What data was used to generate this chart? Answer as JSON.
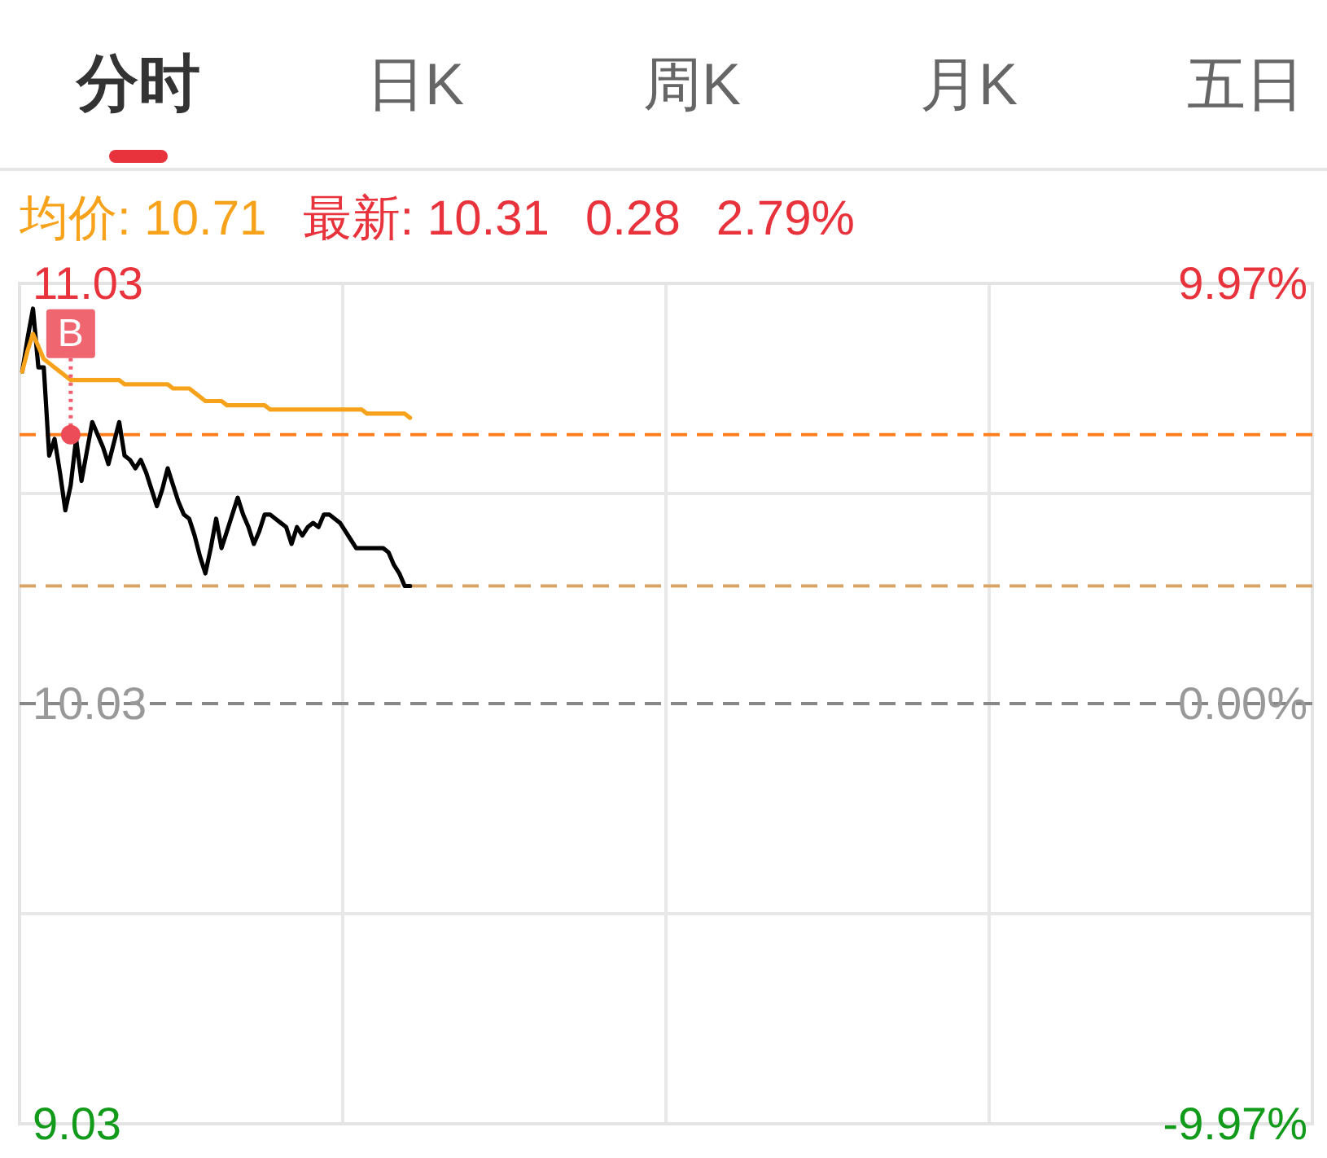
{
  "chart_data": {
    "type": "line",
    "annotations": [
      "分时",
      "日K",
      "周K",
      "月K",
      "五日",
      "均价: 10.71",
      "最新: 10.31",
      "0.28",
      "2.79%"
    ],
    "categories": [
      null,
      null,
      null,
      null,
      null,
      null,
      null,
      null,
      null,
      null,
      null,
      null,
      null,
      null,
      null,
      null,
      null,
      null,
      null,
      null,
      null,
      null,
      null,
      null,
      null,
      null,
      null,
      null,
      null,
      null,
      null,
      null,
      null,
      null,
      null,
      null,
      null,
      null,
      null,
      null,
      null,
      null,
      null,
      null,
      null,
      null,
      null,
      null,
      null,
      null,
      null,
      null,
      null,
      null,
      null,
      null,
      null,
      null,
      null,
      null,
      null,
      null,
      null,
      null,
      null,
      null,
      null,
      null,
      null,
      null,
      null,
      null,
      null,
      null,
      null,
      null,
      null,
      null,
      null,
      null,
      null,
      null,
      null,
      null,
      null,
      null,
      null,
      null,
      null,
      null,
      null,
      null,
      null,
      null,
      null,
      null,
      null,
      null,
      null,
      null,
      null,
      null,
      null,
      null,
      null,
      null,
      null,
      null,
      null,
      null,
      null,
      null,
      null,
      null,
      null,
      null,
      null,
      null,
      null,
      null,
      null,
      null,
      null,
      null,
      null,
      null,
      null,
      null,
      null,
      null,
      null,
      null,
      null,
      null,
      null,
      null,
      null,
      null,
      null,
      null,
      null,
      null,
      null,
      null,
      null,
      null,
      null,
      null,
      null,
      null,
      null,
      null,
      null,
      null,
      null,
      null,
      null,
      null,
      null,
      null,
      null,
      null,
      null,
      null,
      null,
      null,
      null,
      null,
      null,
      null,
      null,
      null,
      null,
      null,
      null,
      null,
      null,
      null,
      null,
      null,
      null,
      null,
      null,
      null,
      null,
      null,
      null,
      null,
      null,
      null,
      null,
      null,
      null,
      null,
      null,
      null,
      null,
      null,
      null,
      null,
      null,
      null,
      null,
      null,
      null,
      null,
      null,
      null,
      null,
      null,
      null,
      null,
      null,
      null,
      null,
      null,
      null,
      null,
      null,
      null,
      null,
      null,
      null,
      null,
      null,
      null,
      null,
      null,
      null,
      null,
      null,
      null,
      null,
      null,
      null,
      null,
      null,
      null,
      null,
      null
    ],
    "series": [
      {
        "color": "#000000",
        "values": [
          10.82,
          10.9,
          10.97,
          10.83,
          10.83,
          10.62,
          10.66,
          10.58,
          10.49,
          10.55,
          10.66,
          10.56,
          10.63,
          10.7,
          10.67,
          10.64,
          10.6,
          10.65,
          10.7,
          10.62,
          10.61,
          10.59,
          10.61,
          10.58,
          10.54,
          10.5,
          10.54,
          10.59,
          10.55,
          10.51,
          10.48,
          10.47,
          10.43,
          10.38,
          10.34,
          10.4,
          10.47,
          10.4,
          10.44,
          10.48,
          10.52,
          10.48,
          10.45,
          10.41,
          10.44,
          10.48,
          10.48,
          10.47,
          10.46,
          10.45,
          10.41,
          10.45,
          10.43,
          10.45,
          10.46,
          10.45,
          10.48,
          10.48,
          10.47,
          10.46,
          10.44,
          10.42,
          10.4,
          10.4,
          10.4,
          10.4,
          10.4,
          10.4,
          10.39,
          10.36,
          10.34,
          10.31,
          10.31,
          null,
          null,
          null,
          null,
          null,
          null,
          null,
          null,
          null,
          null,
          null,
          null,
          null,
          null,
          null,
          null,
          null,
          null,
          null,
          null,
          null,
          null,
          null,
          null,
          null,
          null,
          null,
          null,
          null,
          null,
          null,
          null,
          null,
          null,
          null,
          null,
          null,
          null,
          null,
          null,
          null,
          null,
          null,
          null,
          null,
          null,
          null,
          null,
          null,
          null,
          null,
          null,
          null,
          null,
          null,
          null,
          null,
          null,
          null,
          null,
          null,
          null,
          null,
          null,
          null,
          null,
          null,
          null,
          null,
          null,
          null,
          null,
          null,
          null,
          null,
          null,
          null,
          null,
          null,
          null,
          null,
          null,
          null,
          null,
          null,
          null,
          null,
          null,
          null,
          null,
          null,
          null,
          null,
          null,
          null,
          null,
          null,
          null,
          null,
          null,
          null,
          null,
          null,
          null,
          null,
          null,
          null,
          null,
          null,
          null,
          null,
          null,
          null,
          null,
          null,
          null,
          null,
          null,
          null,
          null,
          null,
          null,
          null,
          null,
          null,
          null,
          null,
          null,
          null,
          null,
          null,
          null,
          null,
          null,
          null,
          null,
          null,
          null,
          null,
          null,
          null,
          null,
          null,
          null,
          null,
          null,
          null,
          null,
          null,
          null,
          null,
          null,
          null,
          null,
          null,
          null,
          null,
          null,
          null,
          null,
          null,
          null,
          null,
          null,
          null,
          null,
          null
        ]
      },
      {
        "color": "#f7a21b",
        "values": [
          10.82,
          10.87,
          10.91,
          10.88,
          10.85,
          10.84,
          10.83,
          10.82,
          10.81,
          10.8,
          10.8,
          10.8,
          10.8,
          10.8,
          10.8,
          10.8,
          10.8,
          10.8,
          10.8,
          10.79,
          10.79,
          10.79,
          10.79,
          10.79,
          10.79,
          10.79,
          10.79,
          10.79,
          10.78,
          10.78,
          10.78,
          10.78,
          10.77,
          10.76,
          10.75,
          10.75,
          10.75,
          10.75,
          10.74,
          10.74,
          10.74,
          10.74,
          10.74,
          10.74,
          10.74,
          10.74,
          10.73,
          10.73,
          10.73,
          10.73,
          10.73,
          10.73,
          10.73,
          10.73,
          10.73,
          10.73,
          10.73,
          10.73,
          10.73,
          10.73,
          10.73,
          10.73,
          10.73,
          10.73,
          10.72,
          10.72,
          10.72,
          10.72,
          10.72,
          10.72,
          10.72,
          10.72,
          10.71,
          null,
          null,
          null,
          null,
          null,
          null,
          null,
          null,
          null,
          null,
          null,
          null,
          null,
          null,
          null,
          null,
          null,
          null,
          null,
          null,
          null,
          null,
          null,
          null,
          null,
          null,
          null,
          null,
          null,
          null,
          null,
          null,
          null,
          null,
          null,
          null,
          null,
          null,
          null,
          null,
          null,
          null,
          null,
          null,
          null,
          null,
          null,
          null,
          null,
          null,
          null,
          null,
          null,
          null,
          null,
          null,
          null,
          null,
          null,
          null,
          null,
          null,
          null,
          null,
          null,
          null,
          null,
          null,
          null,
          null,
          null,
          null,
          null,
          null,
          null,
          null,
          null,
          null,
          null,
          null,
          null,
          null,
          null,
          null,
          null,
          null,
          null,
          null,
          null,
          null,
          null,
          null,
          null,
          null,
          null,
          null,
          null,
          null,
          null,
          null,
          null,
          null,
          null,
          null,
          null,
          null,
          null,
          null,
          null,
          null,
          null,
          null,
          null,
          null,
          null,
          null,
          null,
          null,
          null,
          null,
          null,
          null,
          null,
          null,
          null,
          null,
          null,
          null,
          null,
          null,
          null,
          null,
          null,
          null,
          null,
          null,
          null,
          null,
          null,
          null,
          null,
          null,
          null,
          null,
          null,
          null,
          null,
          null,
          null,
          null,
          null,
          null,
          null,
          null,
          null,
          null,
          null,
          null,
          null,
          null,
          null,
          null,
          null,
          null,
          null,
          null,
          null
        ]
      },
      {
        "type": "scatter",
        "name": "B",
        "color": "#ec4b58",
        "marker": "circle",
        "values": [
          null,
          null,
          null,
          null,
          null,
          null,
          null,
          null,
          null,
          10.67,
          null,
          null,
          null,
          null,
          null,
          null,
          null,
          null,
          null,
          null,
          null,
          null,
          null,
          null,
          null,
          null,
          null,
          null,
          null,
          null,
          null,
          null,
          null,
          null,
          null,
          null,
          null,
          null,
          null,
          null,
          null,
          null,
          null,
          null,
          null,
          null,
          null,
          null,
          null,
          null,
          null,
          null,
          null,
          null,
          null,
          null,
          null,
          null,
          null,
          null,
          null,
          null,
          null,
          null,
          null,
          null,
          null,
          null,
          null,
          null,
          null,
          null,
          null,
          null,
          null,
          null,
          null,
          null,
          null,
          null,
          null,
          null,
          null,
          null,
          null,
          null,
          null,
          null,
          null,
          null,
          null,
          null,
          null,
          null,
          null,
          null,
          null,
          null,
          null,
          null,
          null,
          null,
          null,
          null,
          null,
          null,
          null,
          null,
          null,
          null,
          null,
          null,
          null,
          null,
          null,
          null,
          null,
          null,
          null,
          null,
          null,
          null,
          null,
          null,
          null,
          null,
          null,
          null,
          null,
          null,
          null,
          null,
          null,
          null,
          null,
          null,
          null,
          null,
          null,
          null,
          null,
          null,
          null,
          null,
          null,
          null,
          null,
          null,
          null,
          null,
          null,
          null,
          null,
          null,
          null,
          null,
          null,
          null,
          null,
          null,
          null,
          null,
          null,
          null,
          null,
          null,
          null,
          null,
          null,
          null,
          null,
          null,
          null,
          null,
          null,
          null,
          null,
          null,
          null,
          null,
          null,
          null,
          null,
          null,
          null,
          null,
          null,
          null,
          null,
          null,
          null,
          null,
          null,
          null,
          null,
          null,
          null,
          null,
          null,
          null,
          null,
          null,
          null,
          null,
          null,
          null,
          null,
          null,
          null,
          null,
          null,
          null,
          null,
          null,
          null,
          null,
          null,
          null,
          null,
          null,
          null,
          null,
          null,
          null,
          null,
          null,
          null,
          null,
          null,
          null,
          null,
          null,
          null,
          null,
          null,
          null,
          null,
          null,
          null,
          null
        ]
      }
    ],
    "ylim": [
      9.03,
      11.03
    ],
    "yticks": [
      11.03,
      {
        "value": 10.53,
        "label": null
      },
      10.03,
      {
        "value": 9.53,
        "label": null
      },
      9.03
    ],
    "y2lim": [
      -9.97,
      9.97
    ],
    "y2ticks": [
      {
        "value": 9.97,
        "label": "9.97%"
      },
      {
        "value": 0,
        "label": "0.00%"
      },
      {
        "value": -9.97,
        "label": "-9.97%"
      }
    ],
    "grid": true,
    "ref_lines": [
      {
        "axis": "y",
        "value": 10.67,
        "color": "#ff7f1e",
        "line_style": "dashed"
      },
      {
        "axis": "y",
        "value": 10.31,
        "color": "#d9a566",
        "line_style": "dashed"
      },
      {
        "axis": "y",
        "value": 10.03,
        "color": "#888888",
        "line_style": "dashed"
      }
    ]
  }
}
